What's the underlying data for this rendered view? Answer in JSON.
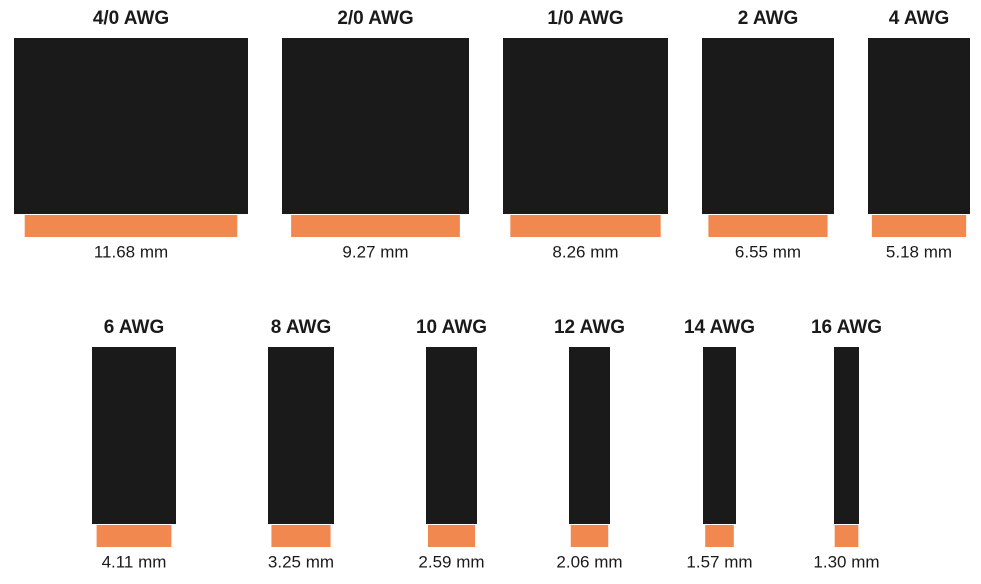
{
  "wires": [
    {
      "gauge": "4/0 AWG",
      "diameter_mm": 11.68,
      "diameter_label": "11.68 mm"
    },
    {
      "gauge": "2/0 AWG",
      "diameter_mm": 9.27,
      "diameter_label": "9.27 mm"
    },
    {
      "gauge": "1/0 AWG",
      "diameter_mm": 8.26,
      "diameter_label": "8.26 mm"
    },
    {
      "gauge": "2 AWG",
      "diameter_mm": 6.55,
      "diameter_label": "6.55 mm"
    },
    {
      "gauge": "4 AWG",
      "diameter_mm": 5.18,
      "diameter_label": "5.18 mm"
    },
    {
      "gauge": "6 AWG",
      "diameter_mm": 4.11,
      "diameter_label": "4.11 mm"
    },
    {
      "gauge": "8 AWG",
      "diameter_mm": 3.25,
      "diameter_label": "3.25 mm"
    },
    {
      "gauge": "10 AWG",
      "diameter_mm": 2.59,
      "diameter_label": "2.59 mm"
    },
    {
      "gauge": "12 AWG",
      "diameter_mm": 2.06,
      "diameter_label": "2.06 mm"
    },
    {
      "gauge": "14 AWG",
      "diameter_mm": 1.57,
      "diameter_label": "1.57 mm"
    },
    {
      "gauge": "16 AWG",
      "diameter_mm": 1.3,
      "diameter_label": "1.30 mm"
    }
  ]
}
